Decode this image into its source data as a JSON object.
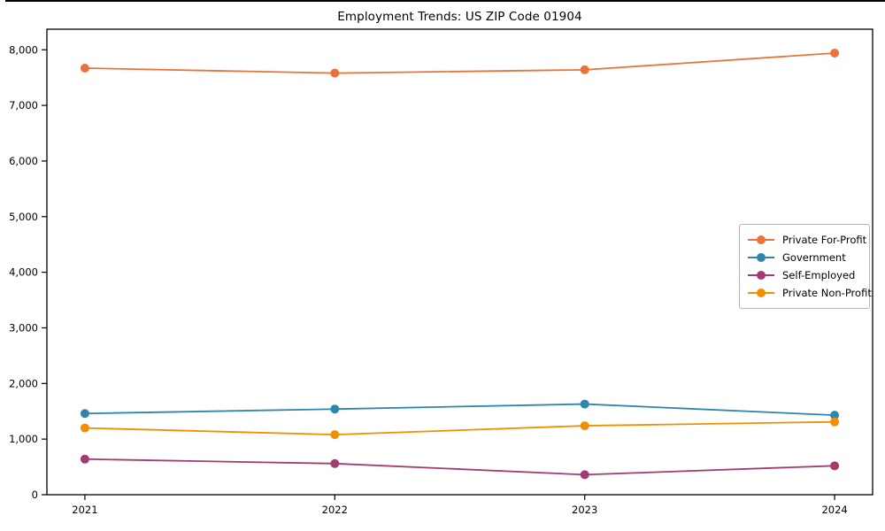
{
  "chart_data": {
    "type": "line",
    "title": "Employment Trends: US ZIP Code 01904",
    "xlabel": "",
    "ylabel": "",
    "x": [
      2021,
      2022,
      2023,
      2024
    ],
    "x_tick_labels": [
      "2021",
      "2022",
      "2023",
      "2024"
    ],
    "series": [
      {
        "name": "Private For-Profit",
        "color": "#E8743B",
        "values": [
          7670,
          7580,
          7640,
          7940
        ]
      },
      {
        "name": "Government",
        "color": "#2E86AB",
        "values": [
          1460,
          1540,
          1630,
          1430
        ]
      },
      {
        "name": "Self-Employed",
        "color": "#A23B72",
        "values": [
          640,
          560,
          360,
          520
        ]
      },
      {
        "name": "Private Non-Profit",
        "color": "#F18F01",
        "values": [
          1200,
          1080,
          1240,
          1310
        ]
      }
    ],
    "ylim": [
      0,
      8370
    ],
    "yticks": [
      0,
      1000,
      2000,
      3000,
      4000,
      5000,
      6000,
      7000,
      8000
    ],
    "ytick_labels": [
      "0",
      "1,000",
      "2,000",
      "3,000",
      "4,000",
      "5,000",
      "6,000",
      "7,000",
      "8,000"
    ],
    "grid": false,
    "legend": {
      "position": "right-middle",
      "frame": true
    },
    "marker": "circle",
    "axis_color": "#000000",
    "background_color": "#ffffff"
  }
}
